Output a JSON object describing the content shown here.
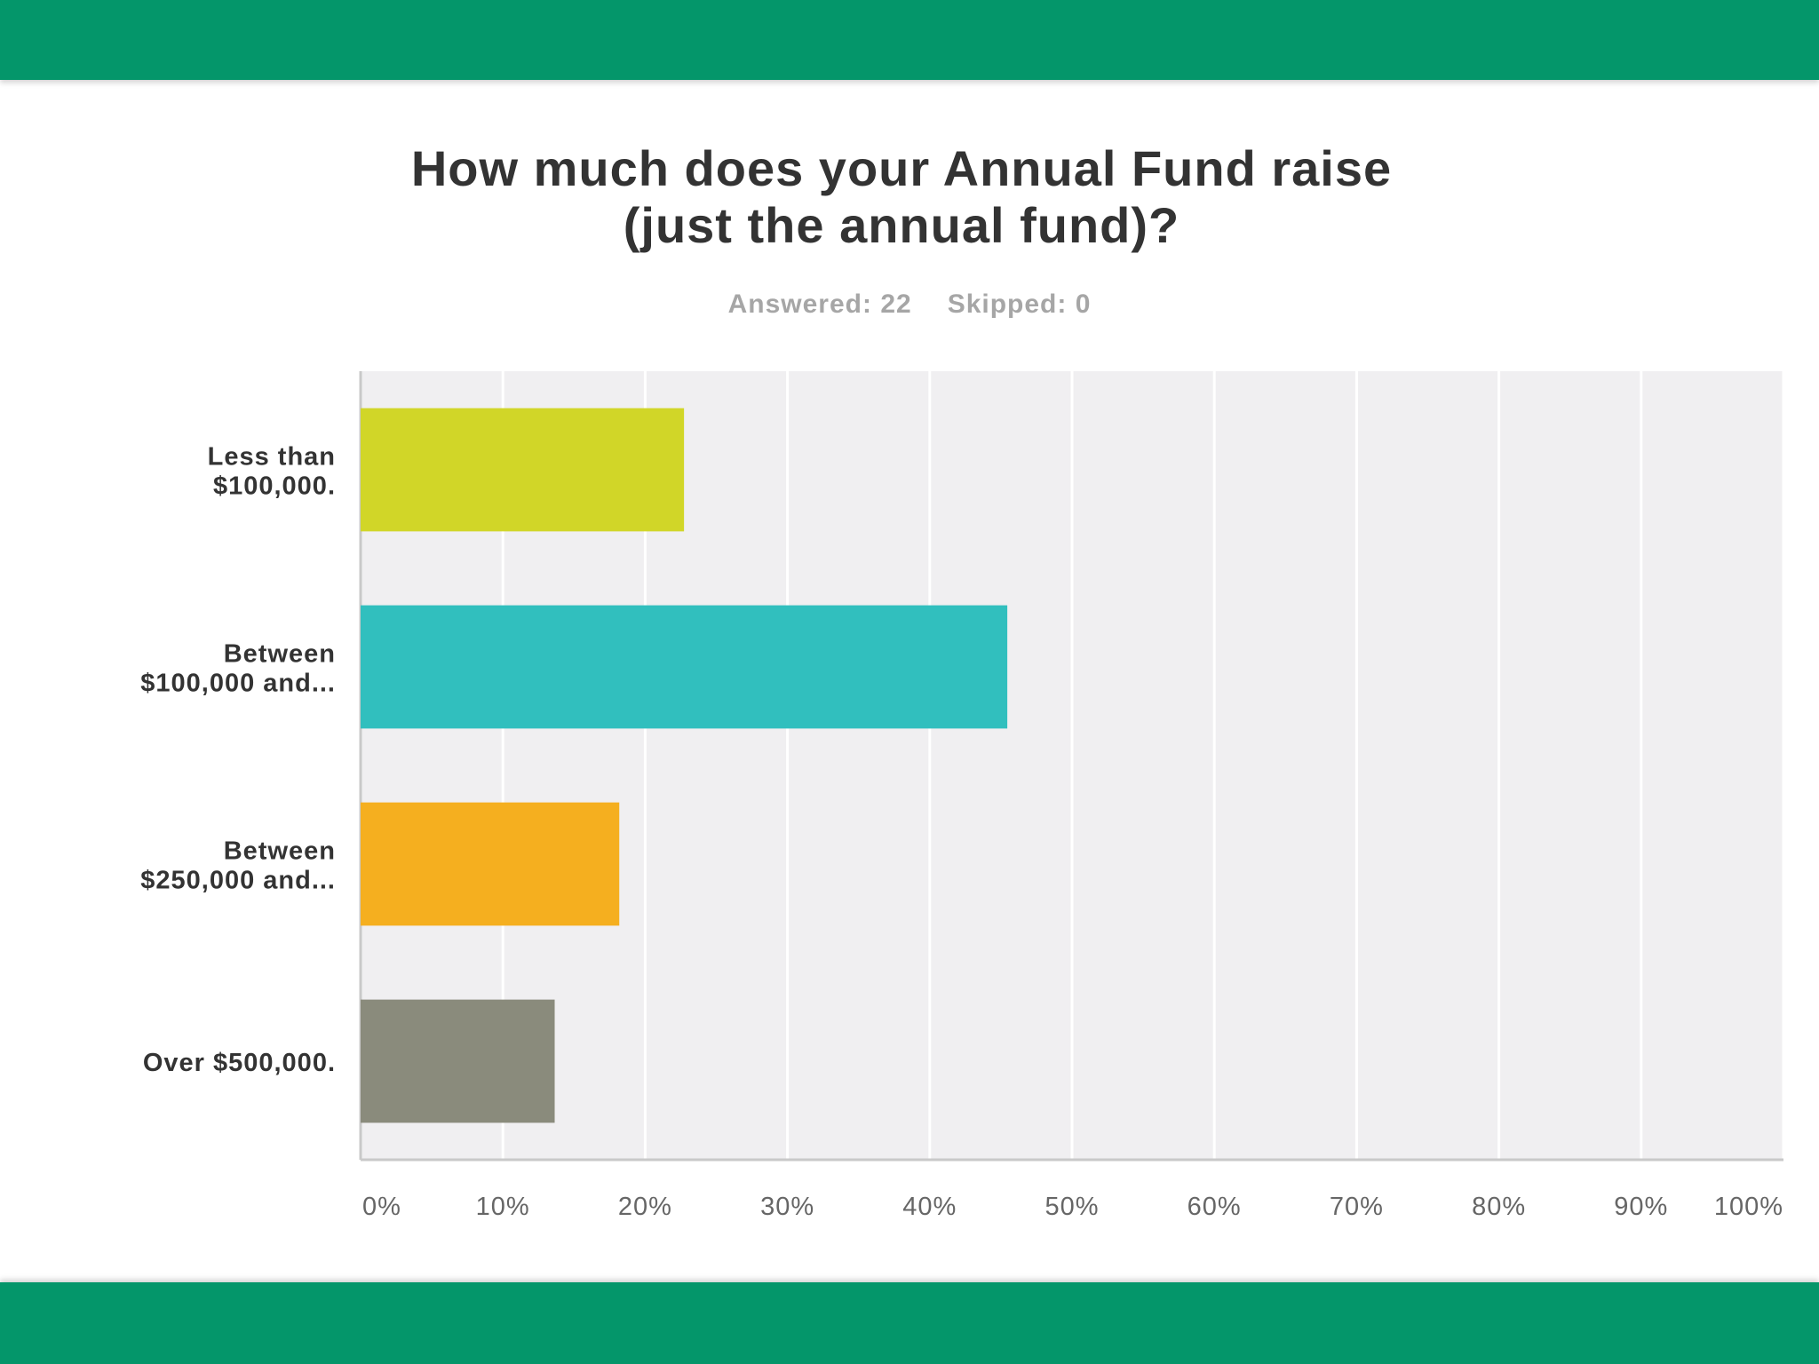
{
  "colors": {
    "band": "#04966a",
    "plot_bg": "#f0eff1",
    "grid": "#ffffff",
    "axis": "#c9c9c9",
    "label": "#333333",
    "tick": "#666666",
    "stats": "#a6a6a6"
  },
  "header": {
    "title_line1": "How much does your Annual Fund raise",
    "title_line2": "(just the annual fund)?",
    "answered": "Answered: 22",
    "skipped": "Skipped: 0"
  },
  "chart_data": {
    "type": "bar",
    "orientation": "horizontal",
    "title": "How much does your Annual Fund raise (just the annual fund)?",
    "categories": [
      [
        "Less than",
        "$100,000."
      ],
      [
        "Between",
        "$100,000 and..."
      ],
      [
        "Between",
        "$250,000 and..."
      ],
      [
        "Over $500,000."
      ]
    ],
    "values": [
      22.73,
      45.45,
      18.18,
      13.64
    ],
    "bar_colors": [
      "#d1d628",
      "#31bfbe",
      "#f5af1f",
      "#8a8b7c"
    ],
    "xlim": [
      0,
      100
    ],
    "xticks": [
      "0%",
      "10%",
      "20%",
      "30%",
      "40%",
      "50%",
      "60%",
      "70%",
      "80%",
      "90%",
      "100%"
    ],
    "grid": true,
    "legend": "none"
  }
}
